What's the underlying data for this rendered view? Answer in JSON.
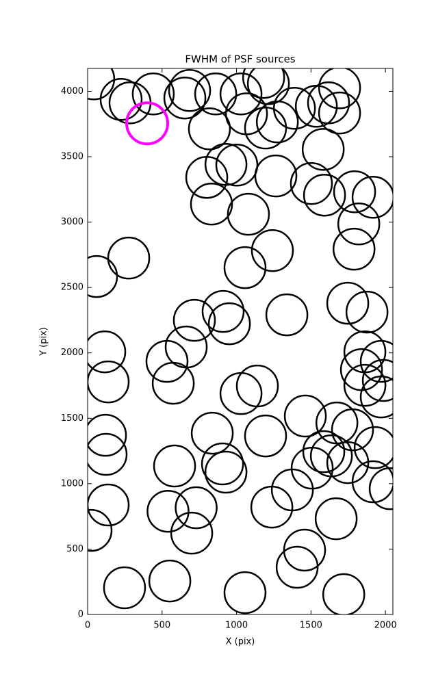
{
  "chart_data": {
    "type": "scatter",
    "title": "FWHM of PSF sources",
    "xlabel": "X (pix)",
    "ylabel": "Y (pix)",
    "xlim": [
      0,
      2050
    ],
    "ylim": [
      0,
      4175
    ],
    "xticks": [
      0,
      500,
      1000,
      1500,
      2000
    ],
    "yticks": [
      0,
      500,
      1000,
      1500,
      2000,
      2500,
      3000,
      3500,
      4000
    ],
    "marker": "open-circle",
    "series": [
      {
        "color": "#000000",
        "x": [
          41,
          225,
          285,
          441,
          653,
          685,
          860,
          1030,
          1067,
          1182,
          1214,
          1195,
          1274,
          1389,
          1536,
          1618,
          1692,
          1692,
          818,
          1582,
          800,
          929,
          1002,
          1264,
          1503,
          1591,
          1793,
          1917,
          832,
          1080,
          1821,
          1789,
          1241,
          276,
          60,
          1057,
          1747,
          1876,
          1338,
          717,
          910,
          952,
          662,
          533,
          575,
          115,
          138,
          1862,
          1839,
          1862,
          1972,
          1986,
          1972,
          1140,
          1030,
          1462,
          1674,
          1779,
          1931,
          120,
          124,
          837,
          1195,
          906,
          929,
          584,
          1586,
          1637,
          1747,
          1508,
          1917,
          2032,
          1375,
          1237,
          138,
          540,
          729,
          699,
          1669,
          23,
          1457,
          1407,
          248,
          552,
          1057,
          1720
        ],
        "values": [
          4095,
          3938,
          3912,
          3980,
          3949,
          4006,
          3980,
          3980,
          3828,
          4106,
          4059,
          3719,
          3766,
          3870,
          3886,
          3912,
          4027,
          3834,
          3713,
          3556,
          3342,
          3441,
          3436,
          3353,
          3295,
          3206,
          3232,
          3190,
          3138,
          3060,
          2986,
          2793,
          2782,
          2725,
          2584,
          2652,
          2380,
          2312,
          2291,
          2249,
          2317,
          2223,
          2045,
          1935,
          1768,
          2008,
          1778,
          2008,
          1872,
          1752,
          1935,
          1789,
          1663,
          1747,
          1689,
          1517,
          1464,
          1412,
          1276,
          1370,
          1224,
          1386,
          1365,
          1151,
          1088,
          1135,
          1245,
          1213,
          1161,
          1119,
          1015,
          962,
          952,
          821,
          837,
          789,
          816,
          622,
          732,
          643,
          492,
          361,
          204,
          256,
          167,
          152
        ]
      },
      {
        "color": "#ff00ff",
        "x": [
          400
        ],
        "values": [
          3755
        ]
      }
    ]
  }
}
